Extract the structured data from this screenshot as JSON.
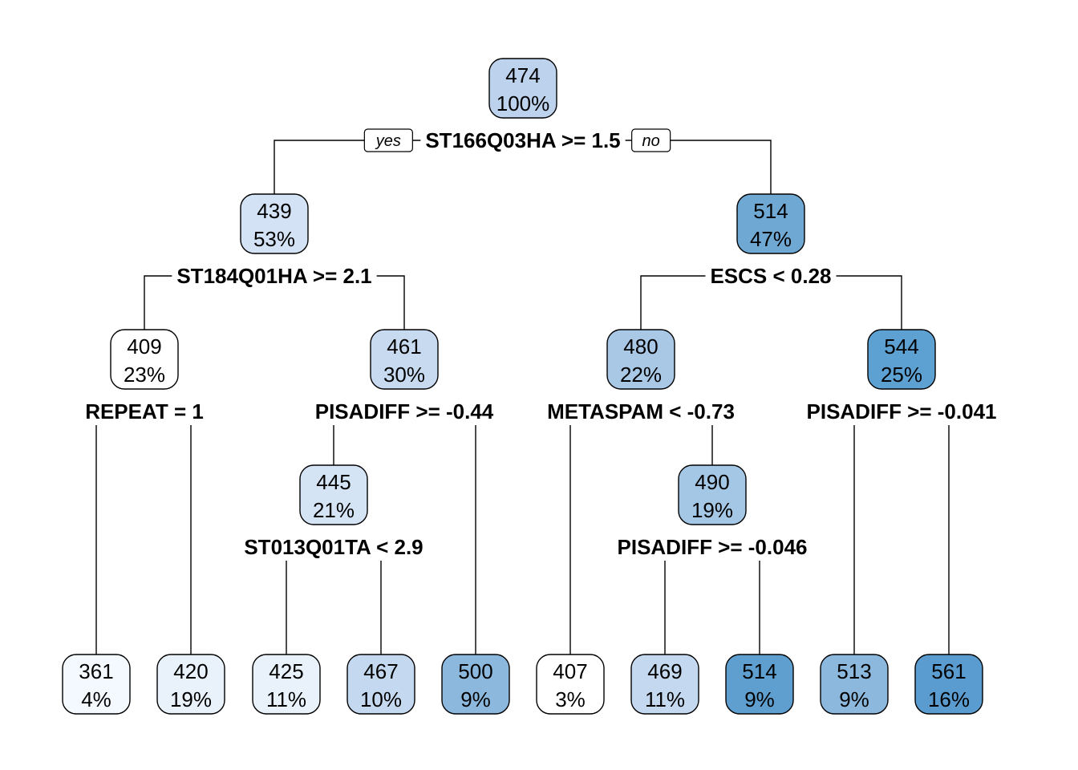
{
  "tree": {
    "branch_labels": {
      "yes": "yes",
      "no": "no"
    },
    "nodes": [
      {
        "id": "n1",
        "value": "474",
        "pct": "100%",
        "fill": "#bdd2ec"
      },
      {
        "id": "n2",
        "value": "439",
        "pct": "53%",
        "fill": "#d3e2f4"
      },
      {
        "id": "n3",
        "value": "514",
        "pct": "47%",
        "fill": "#6fa8d3"
      },
      {
        "id": "n4",
        "value": "409",
        "pct": "23%",
        "fill": "#ffffff"
      },
      {
        "id": "n5",
        "value": "461",
        "pct": "30%",
        "fill": "#c7daf0"
      },
      {
        "id": "n6",
        "value": "480",
        "pct": "22%",
        "fill": "#a8c8e6"
      },
      {
        "id": "n7",
        "value": "544",
        "pct": "25%",
        "fill": "#5da1d2"
      },
      {
        "id": "n8",
        "value": "445",
        "pct": "21%",
        "fill": "#d4e4f5"
      },
      {
        "id": "n9",
        "value": "490",
        "pct": "19%",
        "fill": "#a5c7e6"
      },
      {
        "id": "l1",
        "value": "361",
        "pct": "4%",
        "fill": "#f4f9ff"
      },
      {
        "id": "l2",
        "value": "420",
        "pct": "19%",
        "fill": "#e9f2fb"
      },
      {
        "id": "l3",
        "value": "425",
        "pct": "11%",
        "fill": "#e9f2fb"
      },
      {
        "id": "l4",
        "value": "467",
        "pct": "10%",
        "fill": "#c4d8ef"
      },
      {
        "id": "l5",
        "value": "500",
        "pct": "9%",
        "fill": "#8cb8de"
      },
      {
        "id": "l6",
        "value": "407",
        "pct": "3%",
        "fill": "#ffffff"
      },
      {
        "id": "l7",
        "value": "469",
        "pct": "11%",
        "fill": "#c4d8ef"
      },
      {
        "id": "l8",
        "value": "514",
        "pct": "9%",
        "fill": "#5f9fcf"
      },
      {
        "id": "l9",
        "value": "513",
        "pct": "9%",
        "fill": "#8cb8de"
      },
      {
        "id": "l10",
        "value": "561",
        "pct": "16%",
        "fill": "#5a9ccf"
      }
    ],
    "splits": [
      {
        "id": "s1",
        "label": "ST166Q03HA >= 1.5"
      },
      {
        "id": "s2",
        "label": "ST184Q01HA >= 2.1"
      },
      {
        "id": "s3",
        "label": "ESCS < 0.28"
      },
      {
        "id": "s4",
        "label": "REPEAT = 1"
      },
      {
        "id": "s5",
        "label": "PISADIFF >= -0.44"
      },
      {
        "id": "s6",
        "label": "METASPAM < -0.73"
      },
      {
        "id": "s7",
        "label": "PISADIFF >= -0.041"
      },
      {
        "id": "s8",
        "label": "ST013Q01TA < 2.9"
      },
      {
        "id": "s9",
        "label": "PISADIFF >= -0.046"
      }
    ]
  }
}
